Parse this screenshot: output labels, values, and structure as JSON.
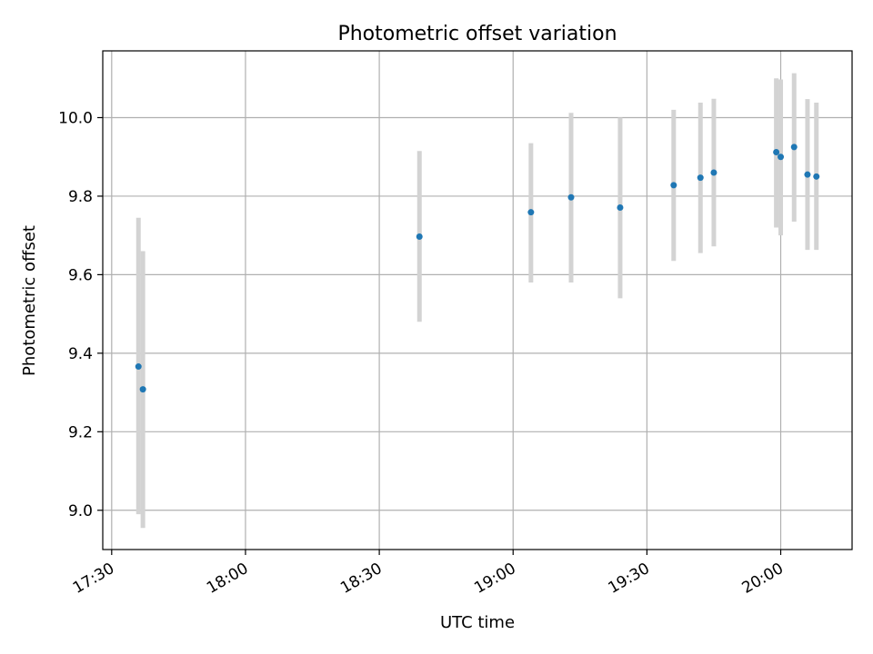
{
  "chart_data": {
    "type": "scatter",
    "title": "Photometric offset variation",
    "xlabel": "UTC time",
    "ylabel": "Photometric offset",
    "x_tick_labels": [
      "17:30",
      "18:00",
      "18:30",
      "19:00",
      "19:30",
      "20:00"
    ],
    "x_ticks_minutes": [
      1050,
      1080,
      1110,
      1140,
      1170,
      1200
    ],
    "y_tick_labels": [
      "9.0",
      "9.2",
      "9.4",
      "9.6",
      "9.8",
      "10.0"
    ],
    "y_ticks": [
      9.0,
      9.2,
      9.4,
      9.6,
      9.8,
      10.0
    ],
    "xlim": [
      "17:28",
      "20:16"
    ],
    "ylim": [
      8.9,
      10.17
    ],
    "grid": true,
    "legend": "none",
    "series": [
      {
        "points": [
          {
            "x": "17:36",
            "y": 9.366,
            "ylow": 8.99,
            "yhigh": 9.745
          },
          {
            "x": "17:37",
            "y": 9.308,
            "ylow": 8.955,
            "yhigh": 9.66
          },
          {
            "x": "18:39",
            "y": 9.697,
            "ylow": 9.48,
            "yhigh": 9.915
          },
          {
            "x": "19:04",
            "y": 9.759,
            "ylow": 9.58,
            "yhigh": 9.935
          },
          {
            "x": "19:13",
            "y": 9.797,
            "ylow": 9.58,
            "yhigh": 10.012
          },
          {
            "x": "19:24",
            "y": 9.771,
            "ylow": 9.54,
            "yhigh": 10.0
          },
          {
            "x": "19:36",
            "y": 9.828,
            "ylow": 9.635,
            "yhigh": 10.02
          },
          {
            "x": "19:42",
            "y": 9.847,
            "ylow": 9.655,
            "yhigh": 10.038
          },
          {
            "x": "19:45",
            "y": 9.86,
            "ylow": 9.672,
            "yhigh": 10.048
          },
          {
            "x": "19:59",
            "y": 9.912,
            "ylow": 9.72,
            "yhigh": 10.1
          },
          {
            "x": "20:00",
            "y": 9.9,
            "ylow": 9.7,
            "yhigh": 10.097
          },
          {
            "x": "20:03",
            "y": 9.925,
            "ylow": 9.735,
            "yhigh": 10.113
          },
          {
            "x": "20:06",
            "y": 9.855,
            "ylow": 9.663,
            "yhigh": 10.047
          },
          {
            "x": "20:08",
            "y": 9.85,
            "ylow": 9.663,
            "yhigh": 10.038
          }
        ]
      }
    ]
  },
  "colors": {
    "point": "#1f77b4",
    "errorbar": "#d3d3d3",
    "grid": "#b0b0b0",
    "axes": "#000000",
    "background": "#ffffff"
  }
}
